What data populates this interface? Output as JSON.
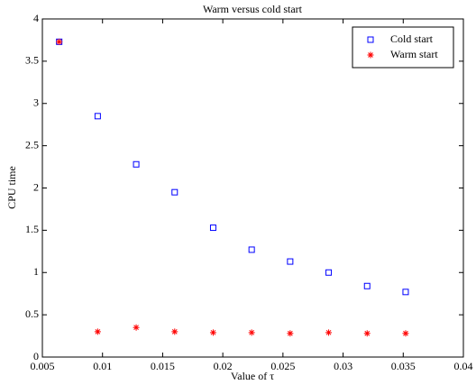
{
  "chart_data": {
    "type": "scatter",
    "title": "Warm versus cold start",
    "x_label": "Value of τ",
    "y_label": "CPU time",
    "x": [
      0.0064,
      0.0096,
      0.0128,
      0.016,
      0.0192,
      0.0224,
      0.0256,
      0.0288,
      0.032,
      0.0352
    ],
    "series": [
      {
        "name": "Cold start",
        "color": "#0000ff",
        "marker": "square",
        "values": [
          3.73,
          2.85,
          2.28,
          1.95,
          1.53,
          1.27,
          1.13,
          1.0,
          0.84,
          0.77
        ]
      },
      {
        "name": "Warm start",
        "color": "#ff0000",
        "marker": "asterisk",
        "values": [
          3.73,
          0.3,
          0.35,
          0.3,
          0.29,
          0.29,
          0.28,
          0.29,
          0.28,
          0.28
        ]
      }
    ],
    "xlim": [
      0.005,
      0.04
    ],
    "xticks": [
      0.005,
      0.01,
      0.015,
      0.02,
      0.025,
      0.03,
      0.035,
      0.04
    ],
    "ylim": [
      0,
      4
    ],
    "yticks": [
      0,
      0.5,
      1,
      1.5,
      2,
      2.5,
      3,
      3.5,
      4
    ],
    "legend": "upper-right",
    "grid": false
  }
}
